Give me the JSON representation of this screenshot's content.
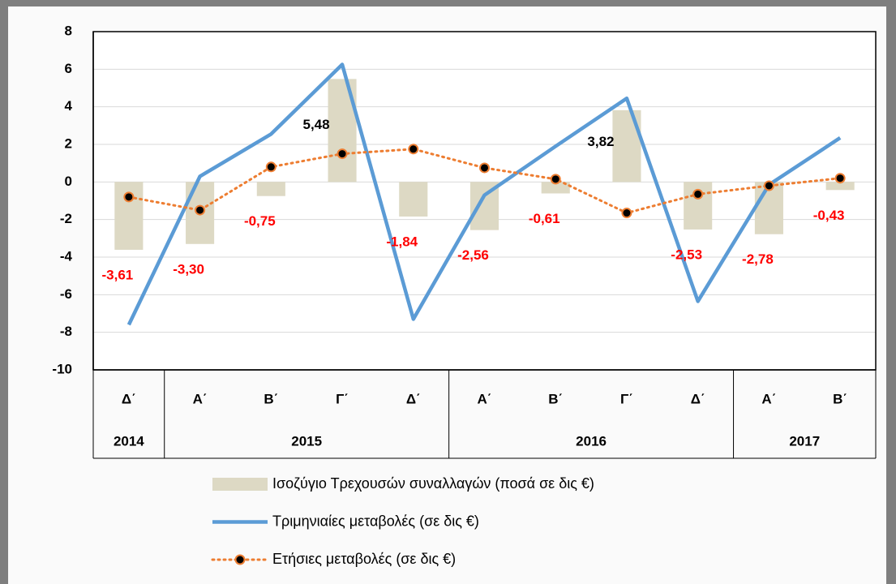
{
  "chart_data": {
    "type": "combo",
    "groups": [
      {
        "name": "2014",
        "categories": [
          "Δ΄"
        ]
      },
      {
        "name": "2015",
        "categories": [
          "Α΄",
          "Β΄",
          "Γ΄",
          "Δ΄"
        ]
      },
      {
        "name": "2016",
        "categories": [
          "Α΄",
          "Β΄",
          "Γ΄",
          "Δ΄"
        ]
      },
      {
        "name": "2017",
        "categories": [
          "Α΄",
          "Β΄"
        ]
      }
    ],
    "series": [
      {
        "name": "Ισοζύγιο Τρεχουσών συναλλαγών (ποσά σε δις €)",
        "type": "bar",
        "color": "#ddd9c4",
        "values": [
          -3.61,
          -3.3,
          -0.75,
          5.48,
          -1.84,
          -2.56,
          -0.61,
          3.82,
          -2.53,
          -2.78,
          -0.43
        ],
        "value_labels": [
          "-3,61",
          "-3,30",
          "-0,75",
          "5,48",
          "-1,84",
          "-2,56",
          "-0,61",
          "3,82",
          "-2,53",
          "-2,78",
          "-0,43"
        ]
      },
      {
        "name": "Τριμηνιαίες μεταβολές (σε δις €)",
        "type": "line",
        "color": "#5b9bd5",
        "values": [
          -7.6,
          0.3,
          2.55,
          6.25,
          -7.3,
          -0.7,
          1.9,
          4.45,
          -6.35,
          -0.15,
          2.35
        ]
      },
      {
        "name": "Ετήσιες μεταβολές (σε δις €)",
        "type": "line",
        "style": "dotted",
        "markers": true,
        "color": "#ed7d31",
        "values": [
          -0.8,
          -1.5,
          0.8,
          1.5,
          1.75,
          0.75,
          0.15,
          -1.65,
          -0.65,
          -0.2,
          0.2
        ]
      }
    ],
    "ylim": [
      -10,
      8
    ],
    "yticks": [
      -10,
      -8,
      -6,
      -4,
      -2,
      0,
      2,
      4,
      6,
      8
    ],
    "grid": true
  }
}
